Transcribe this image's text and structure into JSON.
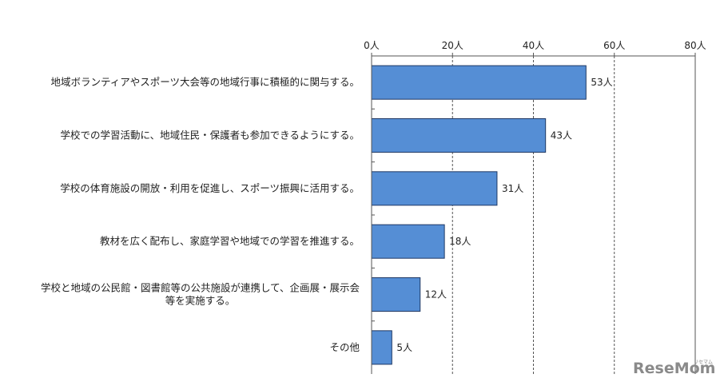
{
  "chart_data": {
    "type": "bar",
    "orientation": "horizontal",
    "categories": [
      [
        "地域ボランティアやスポーツ大会等の地域行事に積極的に関与する。"
      ],
      [
        "学校での学習活動に、地域住民・保護者も参加できるようにする。"
      ],
      [
        "学校の体育施設の開放・利用を促進し、スポーツ振興に活用する。"
      ],
      [
        "教材を広く配布し、家庭学習や地域での学習を推進する。"
      ],
      [
        "学校と地域の公民館・図書館等の公共施設が連携して、企画展・展示会",
        "等を実施する。"
      ],
      [
        "その他"
      ]
    ],
    "values": [
      53,
      43,
      31,
      18,
      12,
      5
    ],
    "value_labels": [
      "53人",
      "43人",
      "31人",
      "18人",
      "12人",
      "5人"
    ],
    "xlim": [
      0,
      80
    ],
    "xticks": [
      0,
      20,
      40,
      60,
      80
    ],
    "xtick_labels": [
      "0人",
      "20人",
      "40人",
      "60人",
      "80人"
    ],
    "axis_position": "top",
    "grid": "vertical dashed",
    "bar_color": "#558ED5",
    "bar_edge_color": "#1F3864"
  },
  "watermark": {
    "text": "ReseMom",
    "subtext": "リセマム"
  }
}
